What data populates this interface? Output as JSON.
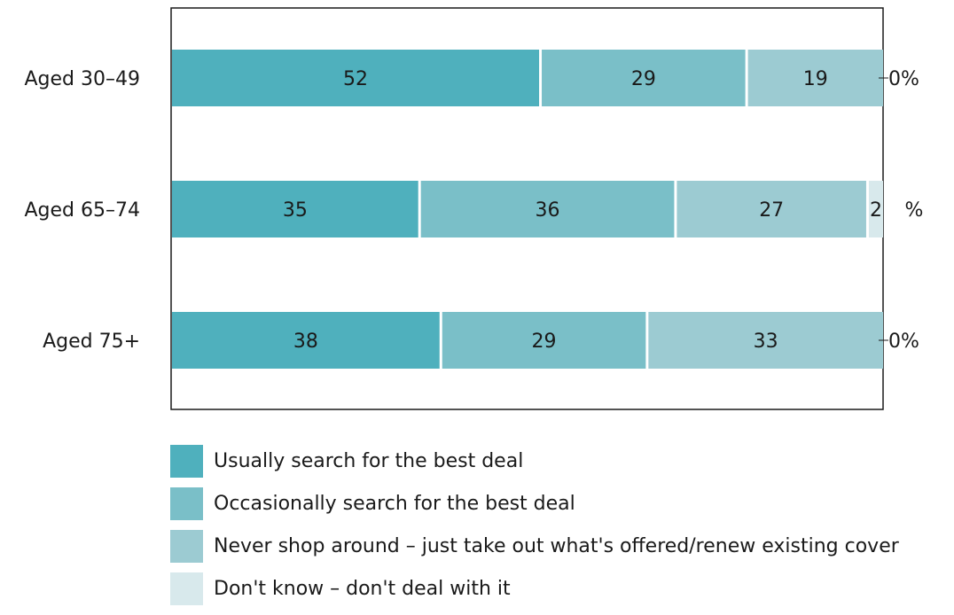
{
  "chart_data": {
    "type": "bar",
    "orientation": "horizontal",
    "stacked": true,
    "categories": [
      "Aged 30–49",
      "Aged 65–74",
      "Aged 75+"
    ],
    "series": [
      {
        "name": "Usually search for the best deal",
        "color": "#4fb0bd",
        "values": [
          52,
          35,
          38
        ]
      },
      {
        "name": "Occasionally search for the best deal",
        "color": "#7abfc8",
        "values": [
          29,
          36,
          29
        ]
      },
      {
        "name": "Never shop around – just take out what's offered/renew existing cover",
        "color": "#9ccbd2",
        "values": [
          19,
          27,
          33
        ]
      },
      {
        "name": "Don't know – don't deal with it",
        "color": "#d8e9ec",
        "values": [
          0,
          2,
          0
        ]
      }
    ],
    "segment_labels": [
      [
        "52",
        "29",
        "19"
      ],
      [
        "35",
        "36",
        "27",
        "2"
      ],
      [
        "38",
        "29",
        "33"
      ]
    ],
    "end_labels": [
      "0%",
      "%",
      "0%"
    ],
    "xlim": [
      0,
      100
    ],
    "grid": false,
    "legend_position": "bottom"
  }
}
